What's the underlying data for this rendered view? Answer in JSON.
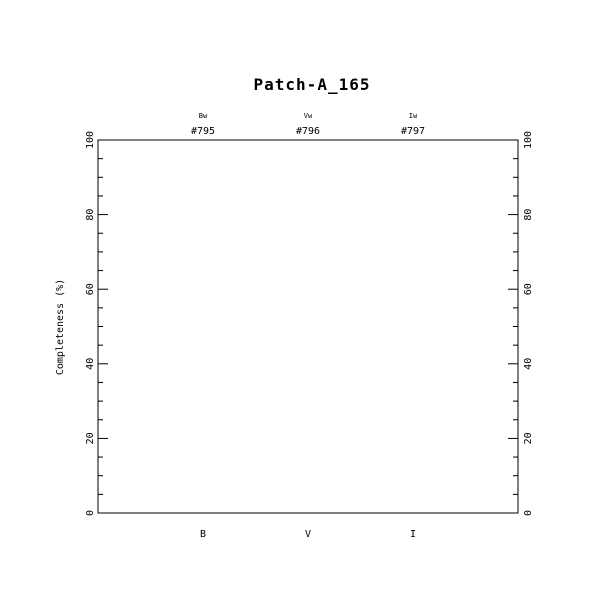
{
  "chart_data": {
    "type": "bar",
    "title": "Patch-A_165",
    "ylabel": "Completeness (%)",
    "xlabel": "",
    "categories": [
      "B",
      "V",
      "I"
    ],
    "top_labels": [
      "Bw",
      "Vw",
      "Iw"
    ],
    "top_ids": [
      "#795",
      "#796",
      "#797"
    ],
    "values": [
      null,
      null,
      null
    ],
    "ylim": [
      0,
      100
    ],
    "yticks": [
      "0",
      "20",
      "40",
      "60",
      "80",
      "100"
    ],
    "ytick_values": [
      0,
      20,
      40,
      60,
      80,
      100
    ],
    "minor_tick_step": 5,
    "grid": false,
    "colors": {
      "axes": "#000000",
      "background": "#ffffff"
    }
  }
}
